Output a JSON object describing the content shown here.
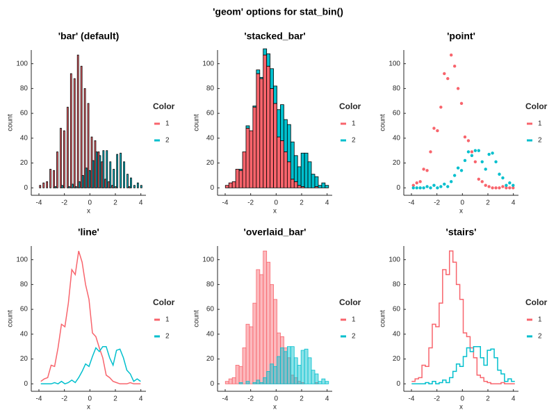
{
  "title": "'geom' options for stat_bin()",
  "chart_data": [
    {
      "type": "bar",
      "title": "'bar' (default)",
      "xlabel": "x",
      "ylabel": "count",
      "legend_title": "Color",
      "x": [
        -3.85,
        -3.58,
        -3.31,
        -3.04,
        -2.77,
        -2.5,
        -2.23,
        -1.96,
        -1.69,
        -1.42,
        -1.15,
        -0.88,
        -0.61,
        -0.34,
        -0.07,
        0.2,
        0.47,
        0.74,
        1.01,
        1.28,
        1.55,
        1.82,
        2.09,
        2.36,
        2.63,
        2.9,
        3.17,
        3.44,
        3.71,
        3.98
      ],
      "series": [
        {
          "name": "1",
          "color": "#f8646c",
          "values": [
            2,
            4,
            5,
            15,
            14,
            29,
            48,
            46,
            65,
            92,
            88,
            107,
            98,
            80,
            68,
            41,
            38,
            29,
            21,
            7,
            5,
            2,
            1,
            0,
            0,
            0,
            1,
            0,
            0,
            0
          ]
        },
        {
          "name": "2",
          "color": "#00bfcd",
          "values": [
            0,
            0,
            0,
            0,
            1,
            0,
            2,
            0,
            1,
            3,
            1,
            5,
            10,
            16,
            14,
            22,
            29,
            26,
            30,
            30,
            21,
            15,
            27,
            28,
            21,
            11,
            8,
            2,
            4,
            2
          ]
        }
      ],
      "xlim": [
        -4.6,
        4.4
      ],
      "ylim": [
        -6,
        111
      ],
      "xticks": [
        -4,
        -2,
        0,
        2,
        4
      ],
      "yticks": [
        0,
        20,
        40,
        60,
        80,
        100
      ]
    },
    {
      "type": "stacked_bar",
      "title": "'stacked_bar'",
      "xlabel": "x",
      "ylabel": "count",
      "legend_title": "Color",
      "x": [
        -3.85,
        -3.58,
        -3.31,
        -3.04,
        -2.77,
        -2.5,
        -2.23,
        -1.96,
        -1.69,
        -1.42,
        -1.15,
        -0.88,
        -0.61,
        -0.34,
        -0.07,
        0.2,
        0.47,
        0.74,
        1.01,
        1.28,
        1.55,
        1.82,
        2.09,
        2.36,
        2.63,
        2.9,
        3.17,
        3.44,
        3.71,
        3.98
      ],
      "series": [
        {
          "name": "1",
          "color": "#f8646c",
          "values": [
            2,
            4,
            5,
            15,
            14,
            29,
            48,
            46,
            65,
            92,
            88,
            107,
            98,
            80,
            68,
            41,
            38,
            29,
            21,
            7,
            5,
            2,
            1,
            0,
            0,
            0,
            1,
            0,
            0,
            0
          ]
        },
        {
          "name": "2",
          "color": "#00bfcd",
          "values": [
            0,
            0,
            0,
            0,
            1,
            0,
            2,
            0,
            1,
            3,
            1,
            5,
            10,
            16,
            14,
            22,
            29,
            26,
            30,
            30,
            21,
            15,
            27,
            28,
            21,
            11,
            8,
            2,
            4,
            2
          ]
        }
      ],
      "xlim": [
        -4.6,
        4.4
      ],
      "ylim": [
        -6,
        111
      ],
      "xticks": [
        -4,
        -2,
        0,
        2,
        4
      ],
      "yticks": [
        0,
        20,
        40,
        60,
        80,
        100
      ]
    },
    {
      "type": "scatter",
      "title": "'point'",
      "xlabel": "x",
      "ylabel": "count",
      "legend_title": "Color",
      "x": [
        -3.85,
        -3.58,
        -3.31,
        -3.04,
        -2.77,
        -2.5,
        -2.23,
        -1.96,
        -1.69,
        -1.42,
        -1.15,
        -0.88,
        -0.61,
        -0.34,
        -0.07,
        0.2,
        0.47,
        0.74,
        1.01,
        1.28,
        1.55,
        1.82,
        2.09,
        2.36,
        2.63,
        2.9,
        3.17,
        3.44,
        3.71,
        3.98
      ],
      "series": [
        {
          "name": "1",
          "color": "#f8646c",
          "values": [
            2,
            4,
            5,
            15,
            14,
            29,
            48,
            46,
            65,
            92,
            88,
            107,
            98,
            80,
            68,
            41,
            38,
            29,
            21,
            7,
            5,
            2,
            1,
            0,
            0,
            0,
            1,
            0,
            0,
            0
          ]
        },
        {
          "name": "2",
          "color": "#00bfcd",
          "values": [
            0,
            0,
            0,
            0,
            1,
            0,
            2,
            0,
            1,
            3,
            1,
            5,
            10,
            16,
            14,
            22,
            29,
            26,
            30,
            30,
            21,
            15,
            27,
            28,
            21,
            11,
            8,
            2,
            4,
            2
          ]
        }
      ],
      "xlim": [
        -4.6,
        4.4
      ],
      "ylim": [
        -6,
        111
      ],
      "xticks": [
        -4,
        -2,
        0,
        2,
        4
      ],
      "yticks": [
        0,
        20,
        40,
        60,
        80,
        100
      ]
    },
    {
      "type": "line",
      "title": "'line'",
      "xlabel": "x",
      "ylabel": "count",
      "legend_title": "Color",
      "x": [
        -3.85,
        -3.58,
        -3.31,
        -3.04,
        -2.77,
        -2.5,
        -2.23,
        -1.96,
        -1.69,
        -1.42,
        -1.15,
        -0.88,
        -0.61,
        -0.34,
        -0.07,
        0.2,
        0.47,
        0.74,
        1.01,
        1.28,
        1.55,
        1.82,
        2.09,
        2.36,
        2.63,
        2.9,
        3.17,
        3.44,
        3.71,
        3.98
      ],
      "series": [
        {
          "name": "1",
          "color": "#f8646c",
          "values": [
            2,
            4,
            5,
            15,
            14,
            29,
            48,
            46,
            65,
            92,
            88,
            107,
            98,
            80,
            68,
            41,
            38,
            29,
            21,
            7,
            5,
            2,
            1,
            0,
            0,
            0,
            1,
            0,
            0,
            0
          ]
        },
        {
          "name": "2",
          "color": "#00bfcd",
          "values": [
            0,
            0,
            0,
            0,
            1,
            0,
            2,
            0,
            1,
            3,
            1,
            5,
            10,
            16,
            14,
            22,
            29,
            26,
            30,
            30,
            21,
            15,
            27,
            28,
            21,
            11,
            8,
            2,
            4,
            2
          ]
        }
      ],
      "xlim": [
        -4.6,
        4.4
      ],
      "ylim": [
        -6,
        111
      ],
      "xticks": [
        -4,
        -2,
        0,
        2,
        4
      ],
      "yticks": [
        0,
        20,
        40,
        60,
        80,
        100
      ]
    },
    {
      "type": "overlaid_bar",
      "title": "'overlaid_bar'",
      "xlabel": "x",
      "ylabel": "count",
      "legend_title": "Color",
      "x": [
        -3.85,
        -3.58,
        -3.31,
        -3.04,
        -2.77,
        -2.5,
        -2.23,
        -1.96,
        -1.69,
        -1.42,
        -1.15,
        -0.88,
        -0.61,
        -0.34,
        -0.07,
        0.2,
        0.47,
        0.74,
        1.01,
        1.28,
        1.55,
        1.82,
        2.09,
        2.36,
        2.63,
        2.9,
        3.17,
        3.44,
        3.71,
        3.98
      ],
      "series": [
        {
          "name": "1",
          "color": "#f8646c",
          "values": [
            2,
            4,
            5,
            15,
            14,
            29,
            48,
            46,
            65,
            92,
            88,
            107,
            98,
            80,
            68,
            41,
            38,
            29,
            21,
            7,
            5,
            2,
            1,
            0,
            0,
            0,
            1,
            0,
            0,
            0
          ]
        },
        {
          "name": "2",
          "color": "#00bfcd",
          "values": [
            0,
            0,
            0,
            0,
            1,
            0,
            2,
            0,
            1,
            3,
            1,
            5,
            10,
            16,
            14,
            22,
            29,
            26,
            30,
            30,
            21,
            15,
            27,
            28,
            21,
            11,
            8,
            2,
            4,
            2
          ]
        }
      ],
      "xlim": [
        -4.6,
        4.4
      ],
      "ylim": [
        -6,
        111
      ],
      "xticks": [
        -4,
        -2,
        0,
        2,
        4
      ],
      "yticks": [
        0,
        20,
        40,
        60,
        80,
        100
      ]
    },
    {
      "type": "stairs",
      "title": "'stairs'",
      "xlabel": "x",
      "ylabel": "count",
      "legend_title": "Color",
      "x": [
        -3.85,
        -3.58,
        -3.31,
        -3.04,
        -2.77,
        -2.5,
        -2.23,
        -1.96,
        -1.69,
        -1.42,
        -1.15,
        -0.88,
        -0.61,
        -0.34,
        -0.07,
        0.2,
        0.47,
        0.74,
        1.01,
        1.28,
        1.55,
        1.82,
        2.09,
        2.36,
        2.63,
        2.9,
        3.17,
        3.44,
        3.71,
        3.98
      ],
      "series": [
        {
          "name": "1",
          "color": "#f8646c",
          "values": [
            2,
            4,
            5,
            15,
            14,
            29,
            48,
            46,
            65,
            92,
            88,
            107,
            98,
            80,
            68,
            41,
            38,
            29,
            21,
            7,
            5,
            2,
            1,
            0,
            0,
            0,
            1,
            0,
            0,
            0
          ]
        },
        {
          "name": "2",
          "color": "#00bfcd",
          "values": [
            0,
            0,
            0,
            0,
            1,
            0,
            2,
            0,
            1,
            3,
            1,
            5,
            10,
            16,
            14,
            22,
            29,
            26,
            30,
            30,
            21,
            15,
            27,
            28,
            21,
            11,
            8,
            2,
            4,
            2
          ]
        }
      ],
      "xlim": [
        -4.6,
        4.4
      ],
      "ylim": [
        -6,
        111
      ],
      "xticks": [
        -4,
        -2,
        0,
        2,
        4
      ],
      "yticks": [
        0,
        20,
        40,
        60,
        80,
        100
      ]
    }
  ]
}
